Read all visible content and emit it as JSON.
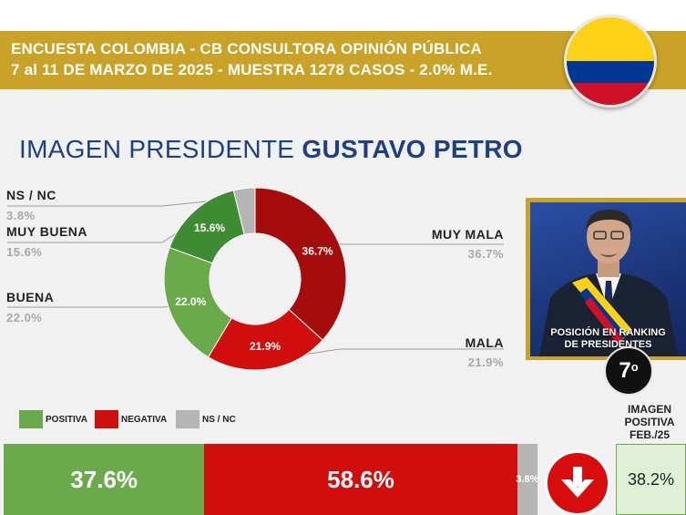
{
  "header": {
    "line1": "ENCUESTA COLOMBIA - CB CONSULTORA OPINIÓN PÚBLICA",
    "line2": "7 al 11 DE MARZO DE 2025 - MUESTRA 1278 CASOS - 2.0% M.E."
  },
  "title": {
    "prefix": "IMAGEN PRESIDENTE",
    "name": "GUSTAVO PETRO"
  },
  "colors": {
    "header_bg": "#c9a227",
    "title": "#1f3f85",
    "positive_dark": "#3f8b33",
    "positive_light": "#6aaa4b",
    "negative_dark": "#a50d0d",
    "negative": "#d10e0e",
    "ns_nc": "#b5b5b5",
    "flag_yellow": "#fcd116",
    "flag_blue": "#003893",
    "flag_red": "#ce1126"
  },
  "chart_data": {
    "type": "pie",
    "style": "donut",
    "title": "IMAGEN PRESIDENTE GUSTAVO PETRO",
    "slices": [
      {
        "label": "MUY MALA",
        "value": 36.7,
        "display": "36.7%",
        "color": "#a50d0d"
      },
      {
        "label": "MALA",
        "value": 21.9,
        "display": "21.9%",
        "color": "#d10e0e"
      },
      {
        "label": "BUENA",
        "value": 22.0,
        "display": "22.0%",
        "color": "#6aaa4b"
      },
      {
        "label": "MUY BUENA",
        "value": 15.6,
        "display": "15.6%",
        "color": "#3f8b33"
      },
      {
        "label": "NS / NC",
        "value": 3.8,
        "display": "3.8%",
        "color": "#b5b5b5"
      }
    ],
    "summary_bar": {
      "type": "bar",
      "orientation": "horizontal-stacked",
      "segments": [
        {
          "label": "POSITIVA",
          "value": 37.6,
          "display": "37.6%"
        },
        {
          "label": "NEGATIVA",
          "value": 58.6,
          "display": "58.6%"
        },
        {
          "label": "NS / NC",
          "value": 3.8,
          "display": "3.8%"
        }
      ]
    }
  },
  "legend": [
    {
      "label": "POSITIVA",
      "color": "#6aaa4b"
    },
    {
      "label": "NEGATIVA",
      "color": "#d10e0e"
    },
    {
      "label": "NS / NC",
      "color": "#b5b5b5"
    }
  ],
  "ranking": {
    "caption_line1": "POSICIÓN EN RANKING",
    "caption_line2": "DE PRESIDENTES",
    "position": "7",
    "position_suffix": "o"
  },
  "previous": {
    "label_line1": "IMAGEN",
    "label_line2": "POSITIVA",
    "label_line3": "FEB./25",
    "value": "38.2%",
    "trend_icon": "arrow-down-icon"
  }
}
